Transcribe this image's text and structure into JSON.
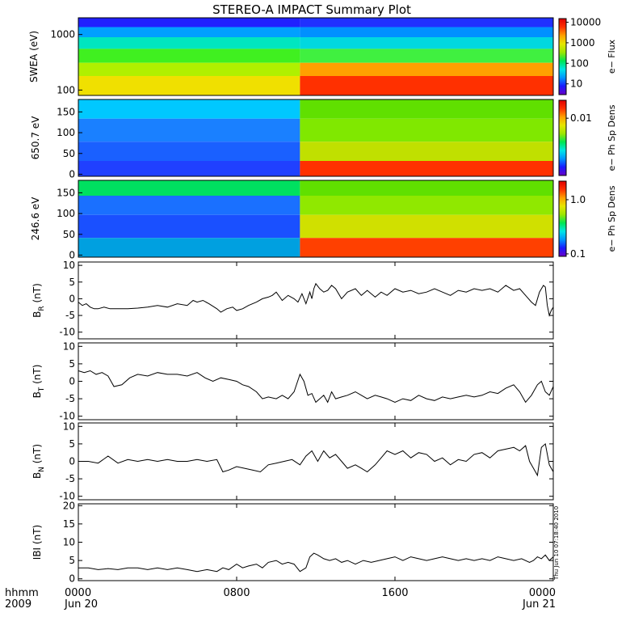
{
  "chart_data": {
    "title": "STEREO-A IMPACT Summary Plot",
    "x_axis": {
      "row1_label": "hhmm",
      "row2_label": "2009",
      "range_hours": [
        0,
        24
      ],
      "ticks": [
        {
          "hour": 0,
          "time": "0000",
          "date": "Jun 20"
        },
        {
          "hour": 8,
          "time": "0800",
          "date": ""
        },
        {
          "hour": 16,
          "time": "1600",
          "date": ""
        },
        {
          "hour": 24,
          "time": "0000",
          "date": "Jun 21"
        }
      ]
    },
    "stamp": "Thu Jun 10 07:18:40 2010",
    "spectrograms": [
      {
        "type": "heatmap",
        "ylabel": "SWEA (eV)",
        "y_scale": "log",
        "ylim": [
          80,
          2000
        ],
        "yticks": [
          {
            "value": 100,
            "label": "100"
          },
          {
            "value": 1000,
            "label": "1000"
          }
        ],
        "colorbar_label": "e− Flux",
        "colorbar_scale": "log",
        "colorbar_range": [
          3,
          15000
        ],
        "colorbar_ticks": [
          {
            "value": 10,
            "label": "10"
          },
          {
            "value": 100,
            "label": "100"
          },
          {
            "value": 1000,
            "label": "1000"
          },
          {
            "value": 10000,
            "label": "10000"
          }
        ]
      },
      {
        "type": "heatmap",
        "ylabel": "650.7 eV",
        "ylim": [
          -5,
          180
        ],
        "yticks": [
          {
            "value": 0,
            "label": "0"
          },
          {
            "value": 50,
            "label": "50"
          },
          {
            "value": 100,
            "label": "100"
          },
          {
            "value": 150,
            "label": "150"
          }
        ],
        "colorbar_label": "e− Ph Sp Dens",
        "colorbar_scale": "log",
        "colorbar_range": [
          0.0003,
          0.03
        ],
        "colorbar_ticks": [
          {
            "value": 0.01,
            "label": "0.01"
          }
        ]
      },
      {
        "type": "heatmap",
        "ylabel": "246.6 eV",
        "ylim": [
          -5,
          180
        ],
        "yticks": [
          {
            "value": 0,
            "label": "0"
          },
          {
            "value": 50,
            "label": "50"
          },
          {
            "value": 100,
            "label": "100"
          },
          {
            "value": 150,
            "label": "150"
          }
        ],
        "colorbar_label": "e− Ph Sp Dens",
        "colorbar_scale": "log",
        "colorbar_range": [
          0.09,
          2.2
        ],
        "colorbar_ticks": [
          {
            "value": 0.1,
            "label": "0.1"
          },
          {
            "value": 1.0,
            "label": "1.0"
          }
        ]
      }
    ],
    "line_panels": [
      {
        "type": "line",
        "ylabel": "B",
        "ylabel_sub": "R",
        "ylabel_unit": " (nT)",
        "ylim": [
          -12,
          11
        ],
        "yticks": [
          -10,
          -5,
          0,
          5,
          10
        ],
        "x_hours": [
          0,
          0.2,
          0.4,
          0.6,
          0.8,
          1.0,
          1.3,
          1.6,
          2.0,
          2.5,
          3.0,
          3.5,
          4.0,
          4.5,
          5.0,
          5.5,
          5.8,
          6.0,
          6.3,
          6.6,
          7.0,
          7.2,
          7.5,
          7.8,
          8.0,
          8.3,
          8.6,
          9.0,
          9.3,
          9.6,
          9.8,
          10.0,
          10.3,
          10.6,
          10.9,
          11.1,
          11.3,
          11.5,
          11.7,
          11.8,
          11.9,
          12.0,
          12.2,
          12.4,
          12.6,
          12.8,
          13.0,
          13.3,
          13.6,
          14.0,
          14.3,
          14.6,
          15.0,
          15.3,
          15.6,
          16.0,
          16.4,
          16.8,
          17.2,
          17.6,
          18.0,
          18.4,
          18.8,
          19.2,
          19.6,
          20.0,
          20.4,
          20.8,
          21.2,
          21.6,
          22.0,
          22.3,
          22.6,
          22.9,
          23.1,
          23.3,
          23.5,
          23.6,
          23.7,
          23.8,
          23.9,
          24.0
        ],
        "values": [
          -1,
          -2,
          -1.5,
          -2.5,
          -3,
          -3,
          -2.5,
          -3,
          -3,
          -3,
          -2.8,
          -2.5,
          -2,
          -2.5,
          -1.5,
          -2,
          -0.5,
          -1,
          -0.5,
          -1.5,
          -3,
          -4,
          -3,
          -2.5,
          -3.5,
          -3,
          -2,
          -1,
          0,
          0.5,
          1,
          2,
          -0.5,
          1,
          0,
          -1,
          1.5,
          -1.5,
          2,
          0,
          3,
          4.5,
          3,
          2,
          2.5,
          4,
          3,
          0,
          2,
          3,
          1,
          2.5,
          0.5,
          2,
          1,
          3,
          2,
          2.5,
          1.5,
          2,
          3,
          2,
          1,
          2.5,
          2,
          3,
          2.5,
          3,
          2,
          4,
          2.5,
          3,
          1,
          -1,
          -2,
          2,
          4,
          3.5,
          -2,
          -5,
          -3.5,
          -2.5
        ],
        "trace_color": "#000000"
      },
      {
        "type": "line",
        "ylabel": "B",
        "ylabel_sub": "T",
        "ylabel_unit": " (nT)",
        "ylim": [
          -11,
          11
        ],
        "yticks": [
          -10,
          -5,
          0,
          5,
          10
        ],
        "x_hours": [
          0,
          0.3,
          0.6,
          0.9,
          1.2,
          1.5,
          1.8,
          2.2,
          2.6,
          3.0,
          3.5,
          4.0,
          4.5,
          5.0,
          5.5,
          6.0,
          6.4,
          6.8,
          7.2,
          7.6,
          8.0,
          8.3,
          8.6,
          9.0,
          9.3,
          9.6,
          10.0,
          10.3,
          10.6,
          10.9,
          11.2,
          11.4,
          11.6,
          11.8,
          12.0,
          12.2,
          12.4,
          12.6,
          12.8,
          13.0,
          13.3,
          13.6,
          14.0,
          14.3,
          14.6,
          15.0,
          15.3,
          15.6,
          16.0,
          16.4,
          16.8,
          17.2,
          17.6,
          18.0,
          18.4,
          18.8,
          19.2,
          19.6,
          20.0,
          20.4,
          20.8,
          21.2,
          21.6,
          22.0,
          22.3,
          22.6,
          22.9,
          23.2,
          23.4,
          23.6,
          23.8,
          24.0
        ],
        "values": [
          3,
          2.5,
          3,
          2,
          2.5,
          1.5,
          -1.5,
          -1,
          1,
          2,
          1.5,
          2.5,
          2,
          2,
          1.5,
          2.5,
          1,
          0,
          1,
          0.5,
          0,
          -1,
          -1.5,
          -3,
          -5,
          -4.5,
          -5,
          -4,
          -5,
          -3,
          2,
          0,
          -4,
          -3.5,
          -6,
          -5,
          -4,
          -6,
          -3,
          -5,
          -4.5,
          -4,
          -3,
          -4,
          -5,
          -4,
          -4.5,
          -5,
          -6,
          -5,
          -5.5,
          -4,
          -5,
          -5.5,
          -4.5,
          -5,
          -4.5,
          -4,
          -4.5,
          -4,
          -3,
          -3.5,
          -2,
          -1,
          -3,
          -6,
          -4,
          -1,
          0,
          -3,
          -4,
          -1.5
        ],
        "trace_color": "#000000"
      },
      {
        "type": "line",
        "ylabel": "B",
        "ylabel_sub": "N",
        "ylabel_unit": " (nT)",
        "ylim": [
          -11,
          11
        ],
        "yticks": [
          -10,
          -5,
          0,
          5,
          10
        ],
        "x_hours": [
          0,
          0.5,
          1.0,
          1.5,
          2.0,
          2.5,
          3.0,
          3.5,
          4.0,
          4.5,
          5.0,
          5.5,
          6.0,
          6.5,
          7.0,
          7.3,
          7.6,
          8.0,
          8.4,
          8.8,
          9.2,
          9.6,
          10.0,
          10.4,
          10.8,
          11.2,
          11.5,
          11.8,
          12.1,
          12.4,
          12.7,
          13.0,
          13.3,
          13.6,
          14.0,
          14.3,
          14.6,
          15.0,
          15.3,
          15.6,
          16.0,
          16.4,
          16.8,
          17.2,
          17.6,
          18.0,
          18.4,
          18.8,
          19.2,
          19.6,
          20.0,
          20.4,
          20.8,
          21.2,
          21.6,
          22.0,
          22.3,
          22.6,
          22.8,
          23.0,
          23.2,
          23.4,
          23.6,
          23.8,
          24.0
        ],
        "values": [
          0,
          0,
          -0.5,
          1.5,
          -0.5,
          0.5,
          0,
          0.5,
          0,
          0.5,
          0,
          0,
          0.5,
          0,
          0.5,
          -3,
          -2.5,
          -1.5,
          -2,
          -2.5,
          -3,
          -1,
          -0.5,
          0,
          0.5,
          -1,
          1.5,
          3,
          0,
          3,
          1,
          2,
          0,
          -2,
          -1,
          -2,
          -3,
          -1,
          1,
          3,
          2,
          3,
          1,
          2.5,
          2,
          0,
          1,
          -1,
          0.5,
          0,
          2,
          2.5,
          1,
          3,
          3.5,
          4,
          3,
          4.5,
          0,
          -2,
          -4,
          4,
          5,
          -1,
          -3
        ],
        "trace_color": "#000000"
      },
      {
        "type": "line",
        "ylabel": "IBI",
        "ylabel_sub": "",
        "ylabel_unit": " (nT)",
        "ylim": [
          -0.5,
          20.5
        ],
        "yticks": [
          0,
          5,
          10,
          15,
          20
        ],
        "x_hours": [
          0,
          0.5,
          1.0,
          1.5,
          2.0,
          2.5,
          3.0,
          3.5,
          4.0,
          4.5,
          5.0,
          5.5,
          6.0,
          6.5,
          7.0,
          7.3,
          7.6,
          8.0,
          8.3,
          8.6,
          9.0,
          9.3,
          9.6,
          10.0,
          10.3,
          10.6,
          10.9,
          11.2,
          11.5,
          11.7,
          11.9,
          12.1,
          12.4,
          12.7,
          13.0,
          13.3,
          13.6,
          14.0,
          14.4,
          14.8,
          15.2,
          15.6,
          16.0,
          16.4,
          16.8,
          17.2,
          17.6,
          18.0,
          18.4,
          18.8,
          19.2,
          19.6,
          20.0,
          20.4,
          20.8,
          21.2,
          21.6,
          22.0,
          22.4,
          22.8,
          23.0,
          23.2,
          23.4,
          23.6,
          23.8,
          24.0
        ],
        "values": [
          3,
          3,
          2.5,
          2.8,
          2.5,
          3,
          3,
          2.5,
          3,
          2.5,
          3,
          2.5,
          2,
          2.5,
          2,
          3,
          2.5,
          4,
          3,
          3.5,
          4,
          3,
          4.5,
          5,
          4,
          4.5,
          4,
          2,
          3,
          6,
          7,
          6.5,
          5.5,
          5,
          5.5,
          4.5,
          5,
          4,
          5,
          4.5,
          5,
          5.5,
          6,
          5,
          6,
          5.5,
          5,
          5.5,
          6,
          5.5,
          5,
          5.5,
          5,
          5.5,
          5,
          6,
          5.5,
          5,
          5.5,
          4.5,
          5,
          6,
          5.5,
          6.5,
          5,
          6
        ],
        "trace_color": "#000000"
      }
    ]
  }
}
